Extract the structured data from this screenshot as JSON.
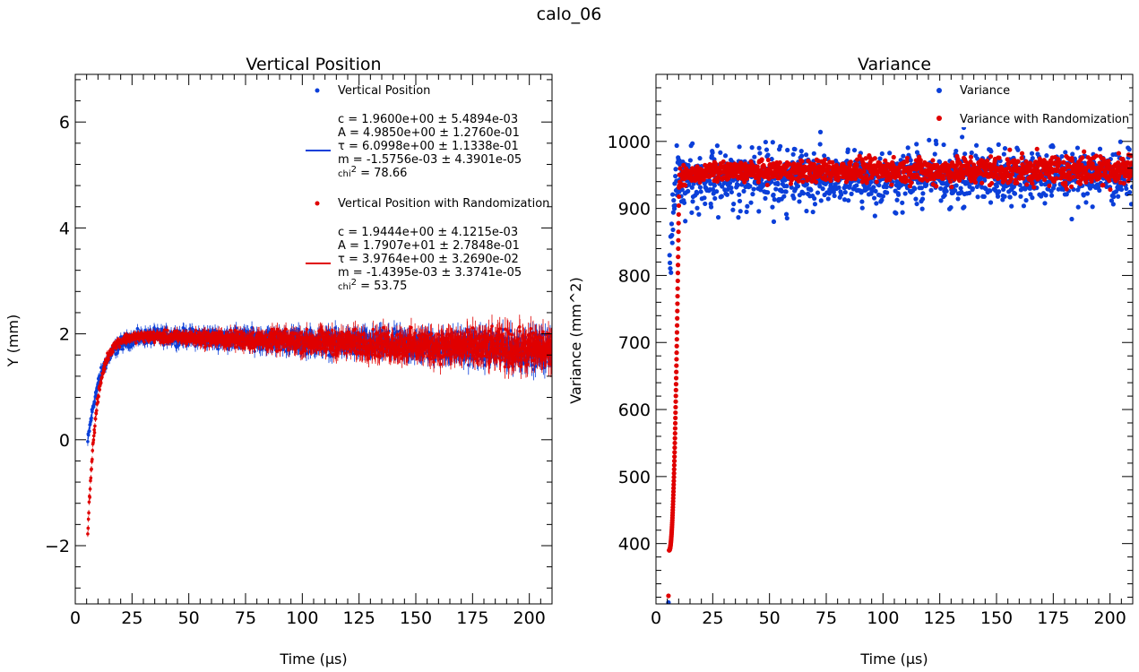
{
  "figure": {
    "title": "calo_06"
  },
  "colors": {
    "blue": "#0b3fd9",
    "red": "#e00000"
  },
  "chart_data": [
    {
      "type": "scatter",
      "title": "Vertical Position",
      "xlabel": "Time (µs)",
      "ylabel": "Y (mm)",
      "xlim": [
        0,
        210
      ],
      "ylim": [
        -3.1,
        6.9
      ],
      "xticks": [
        0,
        25,
        50,
        75,
        100,
        125,
        150,
        175,
        200
      ],
      "xtick_labels": [
        "0",
        "25",
        "50",
        "75",
        "100",
        "125",
        "150",
        "175",
        "200"
      ],
      "yticks": [
        -2,
        0,
        2,
        4,
        6
      ],
      "ytick_labels": [
        "−2",
        "0",
        "2",
        "4",
        "6"
      ],
      "grid": false,
      "legend_position": "top-right",
      "series": [
        {
          "name": "Vertical Position",
          "color": "#0b3fd9",
          "start": 5.5,
          "start_value": -0.1,
          "rise_tau": 6.0,
          "plateau": 1.96,
          "drift_per_us": -0.0016,
          "noise_early": 0.12,
          "noise_late": 0.3,
          "error_bars": true
        },
        {
          "name": "Vertical Position with Randomization",
          "color": "#e00000",
          "start": 5.5,
          "start_value": -1.8,
          "rise_tau": 4.0,
          "plateau": 1.94,
          "drift_per_us": -0.0014,
          "noise_early": 0.08,
          "noise_late": 0.35,
          "error_bars": true
        }
      ],
      "legend": [
        {
          "kind": "marker",
          "color": "#0b3fd9",
          "label": "Vertical Position"
        },
        {
          "kind": "line",
          "color": "#0b3fd9",
          "fit": [
            "c = 1.9600e+00 ± 5.4894e-03",
            " A = 4.9850e+00 ± 1.2760e-01",
            " τ = 6.0998e+00 ± 1.1338e-01",
            " m = -1.5756e-03 ± 4.3901e-05"
          ],
          "chi_label": "chi",
          "chi_value": " = 78.66"
        },
        {
          "kind": "marker",
          "color": "#e00000",
          "label": "Vertical Position with Randomization"
        },
        {
          "kind": "line",
          "color": "#e00000",
          "fit": [
            "c = 1.9444e+00 ± 4.1215e-03",
            " A = 1.7907e+01 ± 2.7848e-01",
            " τ = 3.9764e+00 ± 3.2690e-02",
            " m = -1.4395e-03 ± 3.3741e-05"
          ],
          "chi_label": "chi",
          "chi_value": " = 53.75"
        }
      ]
    },
    {
      "type": "scatter",
      "title": "Variance",
      "xlabel": "Time (µs)",
      "ylabel": "Variance (mm^2)",
      "xlim": [
        0,
        210
      ],
      "ylim": [
        310,
        1100
      ],
      "xticks": [
        0,
        25,
        50,
        75,
        100,
        125,
        150,
        175,
        200
      ],
      "xtick_labels": [
        "0",
        "25",
        "50",
        "75",
        "100",
        "125",
        "150",
        "175",
        "200"
      ],
      "yticks": [
        400,
        500,
        600,
        700,
        800,
        900,
        1000
      ],
      "ytick_labels": [
        "400",
        "500",
        "600",
        "700",
        "800",
        "900",
        "1000"
      ],
      "grid": false,
      "legend_position": "top-right",
      "series": [
        {
          "name": "Variance",
          "color": "#0b3fd9",
          "start": 5.5,
          "start_value": 312,
          "plateau": 945,
          "spread": 40
        },
        {
          "name": "Variance with Randomization",
          "color": "#e00000",
          "start": 5.5,
          "start_value": 322,
          "plateau": 955,
          "spread": 12
        }
      ],
      "legend": [
        {
          "kind": "marker",
          "color": "#0b3fd9",
          "label": "Variance"
        },
        {
          "kind": "marker",
          "color": "#e00000",
          "label": "Variance with Randomization"
        }
      ]
    }
  ]
}
